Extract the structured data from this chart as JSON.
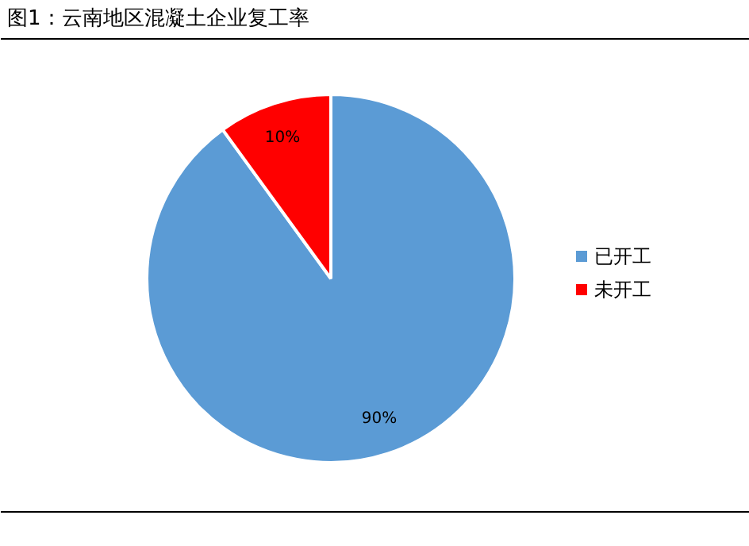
{
  "chart_data": {
    "type": "pie",
    "title": "图1：云南地区混凝土企业复工率",
    "categories": [
      "已开工",
      "未开工"
    ],
    "values": [
      90,
      10
    ],
    "colors": [
      "#5b9bd5",
      "#ff0000"
    ],
    "value_labels": [
      "90%",
      "10%"
    ],
    "legend": "right"
  }
}
